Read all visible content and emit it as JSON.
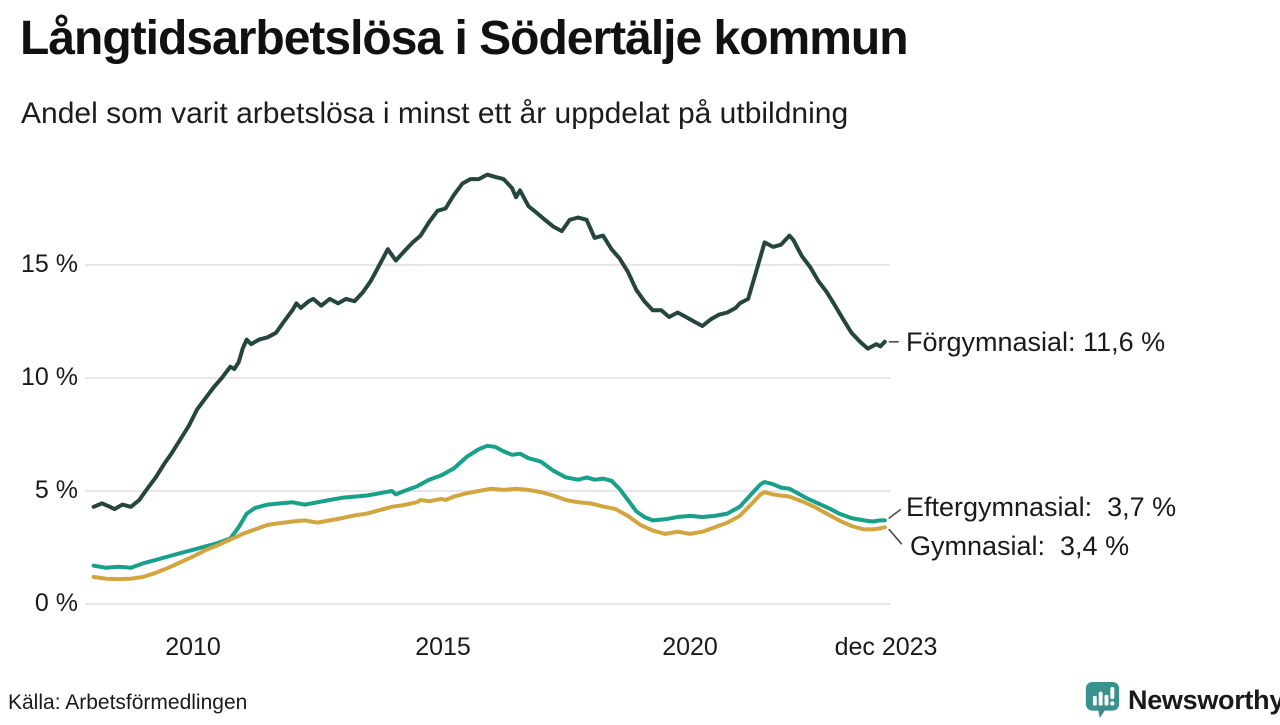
{
  "header": {
    "title": "Långtidsarbetslösa i Södertälje kommun",
    "subtitle": "Andel som varit arbetslösa i minst ett år uppdelat på utbildning"
  },
  "footer": {
    "source": "Källa: Arbetsförmedlingen",
    "brand_name": "Newsworthy",
    "brand_color": "#38918B",
    "brand_icon": "newsworthy-speech-bubble-bar-chart-icon"
  },
  "chart_data": {
    "type": "line",
    "title": "Långtidsarbetslösa i Södertälje kommun",
    "subtitle": "Andel som varit arbetslösa i minst ett år uppdelat på utbildning",
    "unit": "%",
    "decimal_style": "comma",
    "grid": "horizontal",
    "legend_position": "end-of-line-labels",
    "x_axis": {
      "range": [
        2008.0,
        2023.92
      ],
      "ticks": [
        {
          "label": "2010",
          "value": 2010
        },
        {
          "label": "2015",
          "value": 2015
        },
        {
          "label": "2020",
          "value": 2020
        },
        {
          "label": "dec 2023",
          "value": 2023.92
        }
      ]
    },
    "y_axis": {
      "range": [
        0,
        19.5
      ],
      "ticks": [
        {
          "label": "15 %",
          "value": 15
        },
        {
          "label": "10 %",
          "value": 10
        },
        {
          "label": "5 %",
          "value": 5
        },
        {
          "label": "0 %",
          "value": 0
        }
      ]
    },
    "series": [
      {
        "name": "Förgymnasial",
        "color": "#24463E",
        "latest_value": "11,6 %",
        "end_label": "Förgymnasial: 11,6 %",
        "points": [
          [
            2008.0,
            4.3
          ],
          [
            2008.17,
            4.45
          ],
          [
            2008.33,
            4.3
          ],
          [
            2008.42,
            4.2
          ],
          [
            2008.58,
            4.4
          ],
          [
            2008.75,
            4.3
          ],
          [
            2008.92,
            4.6
          ],
          [
            2009.08,
            5.1
          ],
          [
            2009.25,
            5.6
          ],
          [
            2009.42,
            6.2
          ],
          [
            2009.58,
            6.7
          ],
          [
            2009.75,
            7.3
          ],
          [
            2009.92,
            7.9
          ],
          [
            2010.08,
            8.6
          ],
          [
            2010.25,
            9.1
          ],
          [
            2010.42,
            9.6
          ],
          [
            2010.58,
            10.0
          ],
          [
            2010.75,
            10.5
          ],
          [
            2010.83,
            10.4
          ],
          [
            2010.92,
            10.7
          ],
          [
            2011.0,
            11.3
          ],
          [
            2011.08,
            11.7
          ],
          [
            2011.17,
            11.5
          ],
          [
            2011.33,
            11.7
          ],
          [
            2011.5,
            11.8
          ],
          [
            2011.67,
            12.0
          ],
          [
            2011.83,
            12.5
          ],
          [
            2012.0,
            13.0
          ],
          [
            2012.08,
            13.3
          ],
          [
            2012.17,
            13.1
          ],
          [
            2012.33,
            13.4
          ],
          [
            2012.42,
            13.5
          ],
          [
            2012.58,
            13.2
          ],
          [
            2012.75,
            13.5
          ],
          [
            2012.92,
            13.3
          ],
          [
            2013.08,
            13.5
          ],
          [
            2013.25,
            13.4
          ],
          [
            2013.42,
            13.8
          ],
          [
            2013.58,
            14.3
          ],
          [
            2013.75,
            15.0
          ],
          [
            2013.92,
            15.7
          ],
          [
            2014.08,
            15.2
          ],
          [
            2014.25,
            15.6
          ],
          [
            2014.42,
            16.0
          ],
          [
            2014.58,
            16.3
          ],
          [
            2014.75,
            16.9
          ],
          [
            2014.92,
            17.4
          ],
          [
            2015.08,
            17.5
          ],
          [
            2015.25,
            18.1
          ],
          [
            2015.42,
            18.6
          ],
          [
            2015.58,
            18.8
          ],
          [
            2015.75,
            18.8
          ],
          [
            2015.92,
            19.0
          ],
          [
            2016.08,
            18.9
          ],
          [
            2016.25,
            18.8
          ],
          [
            2016.42,
            18.4
          ],
          [
            2016.5,
            18.0
          ],
          [
            2016.58,
            18.3
          ],
          [
            2016.75,
            17.6
          ],
          [
            2016.92,
            17.3
          ],
          [
            2017.08,
            17.0
          ],
          [
            2017.25,
            16.7
          ],
          [
            2017.42,
            16.5
          ],
          [
            2017.58,
            17.0
          ],
          [
            2017.75,
            17.1
          ],
          [
            2017.92,
            17.0
          ],
          [
            2018.0,
            16.6
          ],
          [
            2018.08,
            16.2
          ],
          [
            2018.25,
            16.3
          ],
          [
            2018.42,
            15.7
          ],
          [
            2018.58,
            15.3
          ],
          [
            2018.75,
            14.7
          ],
          [
            2018.92,
            13.9
          ],
          [
            2019.08,
            13.4
          ],
          [
            2019.25,
            13.0
          ],
          [
            2019.42,
            13.0
          ],
          [
            2019.58,
            12.7
          ],
          [
            2019.75,
            12.9
          ],
          [
            2019.92,
            12.7
          ],
          [
            2020.08,
            12.5
          ],
          [
            2020.25,
            12.3
          ],
          [
            2020.42,
            12.6
          ],
          [
            2020.58,
            12.8
          ],
          [
            2020.75,
            12.9
          ],
          [
            2020.92,
            13.1
          ],
          [
            2021.0,
            13.3
          ],
          [
            2021.17,
            13.5
          ],
          [
            2021.33,
            14.7
          ],
          [
            2021.5,
            16.0
          ],
          [
            2021.67,
            15.8
          ],
          [
            2021.83,
            15.9
          ],
          [
            2022.0,
            16.3
          ],
          [
            2022.08,
            16.1
          ],
          [
            2022.25,
            15.4
          ],
          [
            2022.42,
            14.9
          ],
          [
            2022.58,
            14.3
          ],
          [
            2022.75,
            13.8
          ],
          [
            2022.92,
            13.2
          ],
          [
            2023.08,
            12.6
          ],
          [
            2023.25,
            12.0
          ],
          [
            2023.42,
            11.6
          ],
          [
            2023.58,
            11.3
          ],
          [
            2023.75,
            11.5
          ],
          [
            2023.83,
            11.4
          ],
          [
            2023.92,
            11.6
          ]
        ]
      },
      {
        "name": "Eftergymnasial",
        "color": "#17A08A",
        "latest_value": "3,7 %",
        "end_label": "Eftergymnasial:  3,7 %",
        "points": [
          [
            2008.0,
            1.7
          ],
          [
            2008.25,
            1.6
          ],
          [
            2008.5,
            1.65
          ],
          [
            2008.75,
            1.6
          ],
          [
            2009.0,
            1.8
          ],
          [
            2009.25,
            1.95
          ],
          [
            2009.5,
            2.1
          ],
          [
            2009.75,
            2.25
          ],
          [
            2010.0,
            2.4
          ],
          [
            2010.25,
            2.55
          ],
          [
            2010.5,
            2.7
          ],
          [
            2010.75,
            2.9
          ],
          [
            2010.92,
            3.4
          ],
          [
            2011.08,
            4.0
          ],
          [
            2011.25,
            4.25
          ],
          [
            2011.5,
            4.4
          ],
          [
            2011.75,
            4.45
          ],
          [
            2012.0,
            4.5
          ],
          [
            2012.25,
            4.4
          ],
          [
            2012.5,
            4.5
          ],
          [
            2012.75,
            4.6
          ],
          [
            2013.0,
            4.7
          ],
          [
            2013.25,
            4.75
          ],
          [
            2013.5,
            4.8
          ],
          [
            2013.75,
            4.9
          ],
          [
            2014.0,
            5.0
          ],
          [
            2014.08,
            4.85
          ],
          [
            2014.25,
            5.0
          ],
          [
            2014.5,
            5.2
          ],
          [
            2014.75,
            5.5
          ],
          [
            2015.0,
            5.7
          ],
          [
            2015.25,
            6.0
          ],
          [
            2015.5,
            6.5
          ],
          [
            2015.75,
            6.85
          ],
          [
            2015.92,
            7.0
          ],
          [
            2016.08,
            6.95
          ],
          [
            2016.25,
            6.75
          ],
          [
            2016.42,
            6.6
          ],
          [
            2016.58,
            6.65
          ],
          [
            2016.75,
            6.45
          ],
          [
            2017.0,
            6.3
          ],
          [
            2017.25,
            5.9
          ],
          [
            2017.5,
            5.6
          ],
          [
            2017.75,
            5.5
          ],
          [
            2017.92,
            5.6
          ],
          [
            2018.08,
            5.5
          ],
          [
            2018.25,
            5.55
          ],
          [
            2018.42,
            5.45
          ],
          [
            2018.58,
            5.1
          ],
          [
            2018.75,
            4.6
          ],
          [
            2018.92,
            4.1
          ],
          [
            2019.08,
            3.85
          ],
          [
            2019.25,
            3.7
          ],
          [
            2019.5,
            3.75
          ],
          [
            2019.75,
            3.85
          ],
          [
            2020.0,
            3.9
          ],
          [
            2020.25,
            3.85
          ],
          [
            2020.5,
            3.9
          ],
          [
            2020.75,
            4.0
          ],
          [
            2021.0,
            4.3
          ],
          [
            2021.25,
            4.9
          ],
          [
            2021.42,
            5.3
          ],
          [
            2021.5,
            5.4
          ],
          [
            2021.67,
            5.3
          ],
          [
            2021.83,
            5.15
          ],
          [
            2022.0,
            5.1
          ],
          [
            2022.17,
            4.9
          ],
          [
            2022.33,
            4.7
          ],
          [
            2022.58,
            4.45
          ],
          [
            2022.83,
            4.2
          ],
          [
            2023.0,
            4.0
          ],
          [
            2023.25,
            3.8
          ],
          [
            2023.5,
            3.7
          ],
          [
            2023.67,
            3.65
          ],
          [
            2023.83,
            3.7
          ],
          [
            2023.92,
            3.7
          ]
        ]
      },
      {
        "name": "Gymnasial",
        "color": "#D3A53F",
        "latest_value": "3,4 %",
        "end_label": "Gymnasial:  3,4 %",
        "points": [
          [
            2008.0,
            1.2
          ],
          [
            2008.25,
            1.12
          ],
          [
            2008.5,
            1.1
          ],
          [
            2008.75,
            1.12
          ],
          [
            2009.0,
            1.2
          ],
          [
            2009.25,
            1.38
          ],
          [
            2009.5,
            1.6
          ],
          [
            2009.75,
            1.85
          ],
          [
            2010.0,
            2.1
          ],
          [
            2010.25,
            2.38
          ],
          [
            2010.5,
            2.6
          ],
          [
            2010.75,
            2.85
          ],
          [
            2011.0,
            3.1
          ],
          [
            2011.25,
            3.3
          ],
          [
            2011.5,
            3.5
          ],
          [
            2011.75,
            3.58
          ],
          [
            2012.0,
            3.65
          ],
          [
            2012.25,
            3.7
          ],
          [
            2012.5,
            3.6
          ],
          [
            2012.75,
            3.7
          ],
          [
            2013.0,
            3.8
          ],
          [
            2013.25,
            3.92
          ],
          [
            2013.5,
            4.0
          ],
          [
            2013.75,
            4.15
          ],
          [
            2014.0,
            4.3
          ],
          [
            2014.25,
            4.38
          ],
          [
            2014.5,
            4.5
          ],
          [
            2014.58,
            4.6
          ],
          [
            2014.75,
            4.55
          ],
          [
            2015.0,
            4.65
          ],
          [
            2015.08,
            4.6
          ],
          [
            2015.25,
            4.75
          ],
          [
            2015.5,
            4.9
          ],
          [
            2015.75,
            5.0
          ],
          [
            2016.0,
            5.1
          ],
          [
            2016.25,
            5.05
          ],
          [
            2016.5,
            5.1
          ],
          [
            2016.75,
            5.05
          ],
          [
            2017.0,
            4.95
          ],
          [
            2017.25,
            4.8
          ],
          [
            2017.5,
            4.6
          ],
          [
            2017.75,
            4.5
          ],
          [
            2018.0,
            4.45
          ],
          [
            2018.25,
            4.32
          ],
          [
            2018.5,
            4.2
          ],
          [
            2018.75,
            3.9
          ],
          [
            2019.0,
            3.5
          ],
          [
            2019.25,
            3.25
          ],
          [
            2019.5,
            3.1
          ],
          [
            2019.75,
            3.2
          ],
          [
            2020.0,
            3.1
          ],
          [
            2020.25,
            3.2
          ],
          [
            2020.5,
            3.4
          ],
          [
            2020.75,
            3.6
          ],
          [
            2021.0,
            3.9
          ],
          [
            2021.25,
            4.45
          ],
          [
            2021.42,
            4.85
          ],
          [
            2021.5,
            4.95
          ],
          [
            2021.67,
            4.85
          ],
          [
            2021.83,
            4.8
          ],
          [
            2022.0,
            4.75
          ],
          [
            2022.25,
            4.55
          ],
          [
            2022.5,
            4.3
          ],
          [
            2022.75,
            4.0
          ],
          [
            2023.0,
            3.7
          ],
          [
            2023.25,
            3.45
          ],
          [
            2023.5,
            3.3
          ],
          [
            2023.67,
            3.3
          ],
          [
            2023.83,
            3.35
          ],
          [
            2023.92,
            3.4
          ]
        ]
      }
    ]
  }
}
